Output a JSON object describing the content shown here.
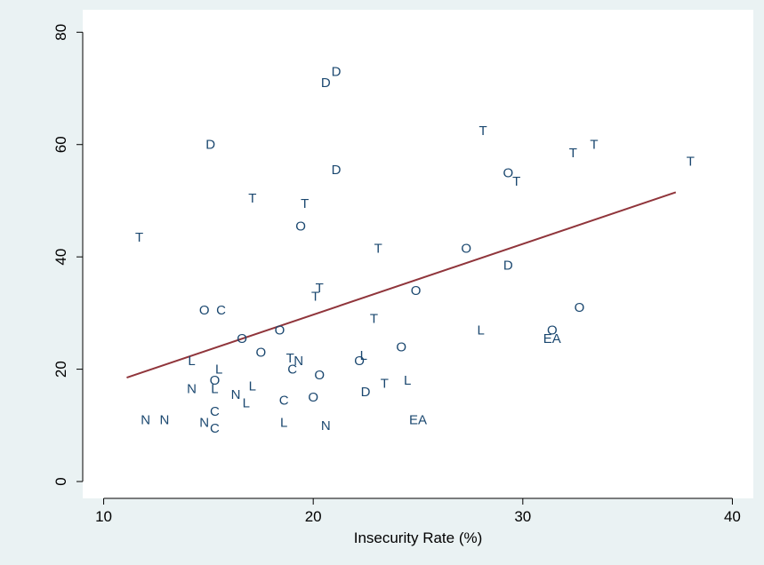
{
  "chart_data": {
    "type": "scatter",
    "xlabel": "Insecurity Rate (%)",
    "ylabel": "",
    "xlim": [
      9,
      41
    ],
    "ylim": [
      -3,
      84
    ],
    "x_ticks": [
      10,
      20,
      30,
      40
    ],
    "y_ticks": [
      0,
      20,
      40,
      60,
      80
    ],
    "grid": false,
    "legend": "none",
    "marker_style": "text-labels",
    "points": [
      {
        "label": "T",
        "x": 11.7,
        "y": 43.5
      },
      {
        "label": "D",
        "x": 15.1,
        "y": 60.0
      },
      {
        "label": "T",
        "x": 17.1,
        "y": 50.5
      },
      {
        "label": "D",
        "x": 20.6,
        "y": 71.0
      },
      {
        "label": "D",
        "x": 21.1,
        "y": 73.0
      },
      {
        "label": "D",
        "x": 21.1,
        "y": 55.5
      },
      {
        "label": "T",
        "x": 19.6,
        "y": 49.5
      },
      {
        "label": "O",
        "x": 19.4,
        "y": 45.5
      },
      {
        "label": "T",
        "x": 28.1,
        "y": 62.5
      },
      {
        "label": "T",
        "x": 32.4,
        "y": 58.5
      },
      {
        "label": "T",
        "x": 33.4,
        "y": 60.0
      },
      {
        "label": "T",
        "x": 38.0,
        "y": 57.0
      },
      {
        "label": "O",
        "x": 29.3,
        "y": 55.0
      },
      {
        "label": "T",
        "x": 29.7,
        "y": 53.5
      },
      {
        "label": "O",
        "x": 27.3,
        "y": 41.5
      },
      {
        "label": "T",
        "x": 23.1,
        "y": 41.5
      },
      {
        "label": "D",
        "x": 29.3,
        "y": 38.5
      },
      {
        "label": "T",
        "x": 20.3,
        "y": 34.5
      },
      {
        "label": "T",
        "x": 20.1,
        "y": 33.0
      },
      {
        "label": "O",
        "x": 24.9,
        "y": 34.0
      },
      {
        "label": "O",
        "x": 14.8,
        "y": 30.5
      },
      {
        "label": "C",
        "x": 15.6,
        "y": 30.5
      },
      {
        "label": "T",
        "x": 22.9,
        "y": 29.0
      },
      {
        "label": "O",
        "x": 32.7,
        "y": 31.0
      },
      {
        "label": "O",
        "x": 31.4,
        "y": 27.0
      },
      {
        "label": "EA",
        "x": 31.4,
        "y": 25.5
      },
      {
        "label": "L",
        "x": 28.0,
        "y": 27.0
      },
      {
        "label": "O",
        "x": 16.6,
        "y": 25.5
      },
      {
        "label": "O",
        "x": 18.4,
        "y": 27.0
      },
      {
        "label": "O",
        "x": 17.5,
        "y": 23.0
      },
      {
        "label": "O",
        "x": 24.2,
        "y": 24.0
      },
      {
        "label": "L",
        "x": 14.2,
        "y": 21.5
      },
      {
        "label": "L",
        "x": 15.5,
        "y": 20.0
      },
      {
        "label": "O",
        "x": 15.3,
        "y": 18.0
      },
      {
        "label": "L",
        "x": 15.3,
        "y": 16.5
      },
      {
        "label": "N",
        "x": 14.2,
        "y": 16.5
      },
      {
        "label": "N",
        "x": 16.3,
        "y": 15.5
      },
      {
        "label": "L",
        "x": 17.1,
        "y": 17.0
      },
      {
        "label": "L",
        "x": 16.8,
        "y": 14.0
      },
      {
        "label": "T",
        "x": 18.9,
        "y": 22.0
      },
      {
        "label": "N",
        "x": 19.3,
        "y": 21.5
      },
      {
        "label": "C",
        "x": 19.0,
        "y": 20.0
      },
      {
        "label": "O",
        "x": 20.3,
        "y": 19.0
      },
      {
        "label": "L",
        "x": 22.4,
        "y": 22.5
      },
      {
        "label": "O",
        "x": 22.2,
        "y": 21.5
      },
      {
        "label": "L",
        "x": 24.5,
        "y": 18.0
      },
      {
        "label": "T",
        "x": 23.4,
        "y": 17.5
      },
      {
        "label": "D",
        "x": 22.5,
        "y": 16.0
      },
      {
        "label": "C",
        "x": 18.6,
        "y": 14.5
      },
      {
        "label": "O",
        "x": 20.0,
        "y": 15.0
      },
      {
        "label": "C",
        "x": 15.3,
        "y": 12.5
      },
      {
        "label": "N",
        "x": 12.0,
        "y": 11.0
      },
      {
        "label": "N",
        "x": 12.9,
        "y": 11.0
      },
      {
        "label": "N",
        "x": 14.8,
        "y": 10.5
      },
      {
        "label": "C",
        "x": 15.3,
        "y": 9.5
      },
      {
        "label": "L",
        "x": 18.6,
        "y": 10.5
      },
      {
        "label": "N",
        "x": 20.6,
        "y": 10.0
      },
      {
        "label": "EA",
        "x": 25.0,
        "y": 11.0
      }
    ],
    "fit_line": {
      "x": [
        11.1,
        37.3
      ],
      "y": [
        18.5,
        51.5
      ]
    },
    "colors": {
      "background": "#eaf2f3",
      "plot_background": "#ffffff",
      "markers": "#1a476f",
      "fit_line": "#90353b",
      "axes": "#000000"
    }
  }
}
